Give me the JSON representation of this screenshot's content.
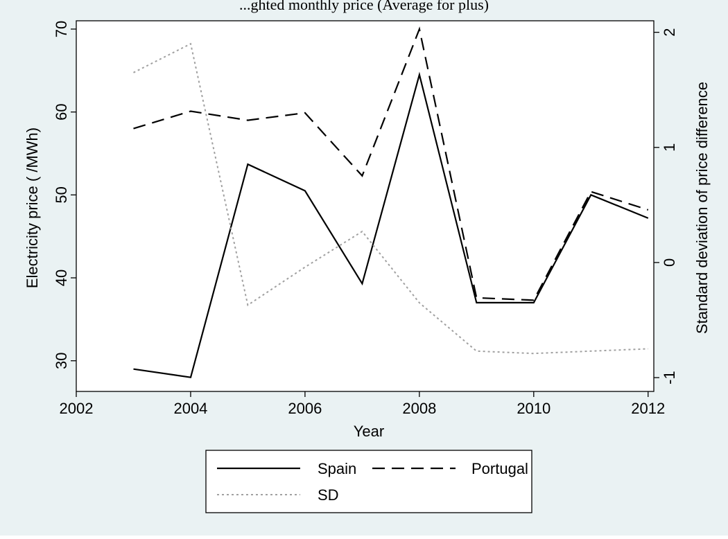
{
  "caption": "...ghted monthly price (Average for plus)",
  "chart_data": {
    "type": "line",
    "title": "",
    "xlabel": "Year",
    "ylabel_left": "Electricity price ( /MWh)",
    "ylabel_right": "Standard deviation of price difference",
    "xlim": [
      2002,
      2012.1
    ],
    "ylim_left": [
      26.3,
      71
    ],
    "ylim_right": [
      -1.12,
      2.1
    ],
    "x_ticks": [
      "2002",
      "2004",
      "2006",
      "2008",
      "2010",
      "2012"
    ],
    "y_left_ticks": [
      "30",
      "40",
      "50",
      "60",
      "70"
    ],
    "y_right_ticks": [
      "-1",
      "0",
      "1",
      "2"
    ],
    "grid": false,
    "legend_position": "bottom",
    "x": [
      2003,
      2004,
      2005,
      2006,
      2007,
      2008,
      2009,
      2010,
      2011,
      2012
    ],
    "series": [
      {
        "name": "Spain",
        "axis": "left",
        "style": "solid",
        "color": "#000000",
        "values": [
          29.0,
          28.0,
          53.7,
          50.5,
          39.3,
          64.5,
          37.0,
          37.0,
          50.0,
          47.2
        ]
      },
      {
        "name": "Portugal",
        "axis": "left",
        "style": "dashed",
        "color": "#000000",
        "values": [
          58.0,
          60.1,
          59.0,
          59.9,
          52.3,
          70.0,
          37.6,
          37.3,
          50.4,
          48.2
        ]
      },
      {
        "name": "SD",
        "axis": "right",
        "style": "dotted",
        "color": "#a0a0a0",
        "values": [
          1.65,
          1.9,
          -0.37,
          -0.04,
          0.27,
          -0.35,
          -0.77,
          -0.79,
          -0.77,
          -0.75
        ]
      }
    ]
  },
  "colors": {
    "background": "#eaf2f3",
    "plot_area": "#ffffff",
    "ink": "#000000",
    "sd_line": "#a0a0a0"
  }
}
